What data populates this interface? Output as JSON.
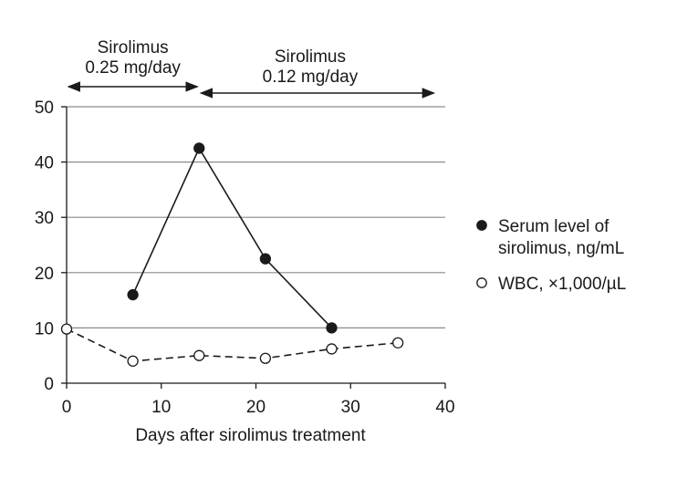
{
  "chart_data": {
    "type": "line",
    "xlabel": "Days after sirolimus treatment",
    "ylabel": "",
    "xlim": [
      0,
      40
    ],
    "ylim": [
      0,
      50
    ],
    "xticks": [
      0,
      10,
      20,
      30,
      40
    ],
    "yticks": [
      0,
      10,
      20,
      30,
      40,
      50
    ],
    "grid": "horizontal",
    "legend_position": "right",
    "series": [
      {
        "name": "Serum level of sirolimus, ng/mL",
        "legend_lines": [
          "Serum level of",
          "sirolimus, ng/mL"
        ],
        "marker": "filled-circle",
        "line_style": "solid",
        "x": [
          7,
          14,
          21,
          28
        ],
        "y": [
          16,
          42.5,
          22.5,
          10
        ]
      },
      {
        "name": "WBC, ×1,000/µL",
        "legend_lines": [
          "WBC, ×1,000/µL"
        ],
        "marker": "open-circle",
        "line_style": "dashed",
        "x": [
          0,
          7,
          14,
          21,
          28,
          35
        ],
        "y": [
          9.8,
          4,
          5,
          4.5,
          6.2,
          7.3
        ]
      }
    ],
    "annotations": [
      {
        "lines": [
          "Sirolimus",
          "0.25 mg/day"
        ],
        "x_start": 0,
        "x_end": 14
      },
      {
        "lines": [
          "Sirolimus",
          "0.12 mg/day"
        ],
        "x_start": 14,
        "x_end": 39
      }
    ],
    "colors": {
      "ink": "#1a1a1a",
      "grid": "#8c8c8c"
    }
  }
}
